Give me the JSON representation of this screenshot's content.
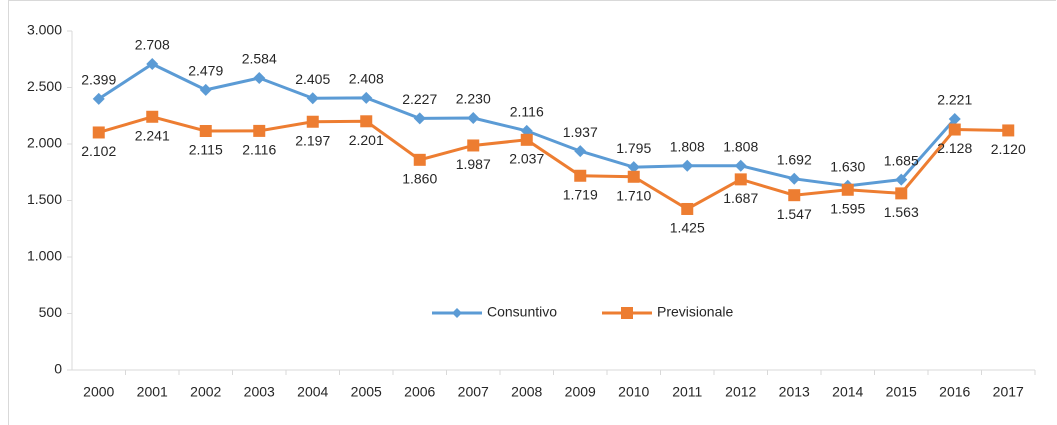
{
  "chart_data": {
    "type": "line",
    "categories": [
      "2000",
      "2001",
      "2002",
      "2003",
      "2004",
      "2005",
      "2006",
      "2007",
      "2008",
      "2009",
      "2010",
      "2011",
      "2012",
      "2013",
      "2014",
      "2015",
      "2016",
      "2017"
    ],
    "series": [
      {
        "name": "Consuntivo",
        "color": "#5b9bd5",
        "values": [
          2399,
          2708,
          2479,
          2584,
          2405,
          2408,
          2227,
          2230,
          2116,
          1937,
          1795,
          1808,
          1808,
          1692,
          1630,
          1685,
          2221,
          null
        ],
        "value_labels": [
          "2.399",
          "2.708",
          "2.479",
          "2.584",
          "2.405",
          "2.408",
          "2.227",
          "2.230",
          "2.116",
          "1.937",
          "1.795",
          "1.808",
          "1.808",
          "1.692",
          "1.630",
          "1.685",
          "2.221",
          null
        ]
      },
      {
        "name": "Previsionale",
        "color": "#ed7d31",
        "values": [
          2102,
          2241,
          2115,
          2116,
          2197,
          2201,
          1860,
          1987,
          2037,
          1719,
          1710,
          1425,
          1687,
          1547,
          1595,
          1563,
          2128,
          2120
        ],
        "value_labels": [
          "2.102",
          "2.241",
          "2.115",
          "2.116",
          "2.197",
          "2.201",
          "1.860",
          "1.987",
          "2.037",
          "1.719",
          "1.710",
          "1.425",
          "1.687",
          "1.547",
          "1.595",
          "1.563",
          "2.128",
          "2.120"
        ]
      }
    ],
    "ylim": [
      0,
      3000
    ],
    "yticks": [
      0,
      500,
      {
        "value": 1000,
        "label": "1.000"
      },
      {
        "value": 1500,
        "label": "1.500"
      },
      {
        "value": 2000,
        "label": "2.000"
      },
      {
        "value": 2500,
        "label": "2.500"
      },
      {
        "value": 3000,
        "label": "3.000"
      }
    ],
    "grid": false,
    "legend": "center"
  }
}
